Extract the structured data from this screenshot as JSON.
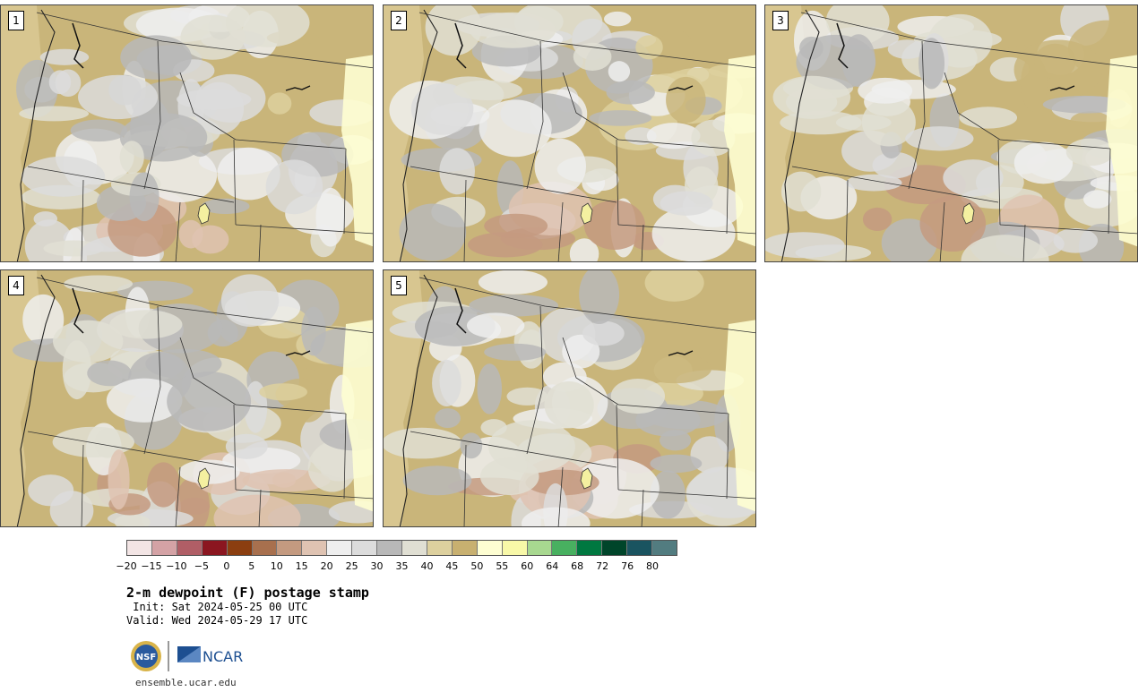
{
  "panels": [
    {
      "number": "1"
    },
    {
      "number": "2"
    },
    {
      "number": "3"
    },
    {
      "number": "4"
    },
    {
      "number": "5"
    }
  ],
  "colorbar": {
    "colors": [
      "#f3e5e5",
      "#d4a2a5",
      "#b05e66",
      "#8b1620",
      "#8b3e10",
      "#a8704e",
      "#c49a80",
      "#dfc3b2",
      "#efefef",
      "#dcdcdc",
      "#b8b8b8",
      "#e0dfd3",
      "#ddd09e",
      "#c8b070",
      "#fefed2",
      "#f8f8a8",
      "#a8d890",
      "#48b060",
      "#007840",
      "#00452a",
      "#1a5460",
      "#527c80"
    ],
    "labels": [
      "−20",
      "−15",
      "−10",
      "−5",
      "0",
      "5",
      "10",
      "15",
      "20",
      "25",
      "30",
      "35",
      "40",
      "45",
      "50",
      "55",
      "60",
      "64",
      "68",
      "72",
      "76",
      "80"
    ]
  },
  "title": "2-m dewpoint (F) postage stamp",
  "init": " Init: Sat 2024-05-25 00 UTC",
  "valid": "Valid: Wed 2024-05-29 17 UTC",
  "logos": {
    "left": "NSF",
    "right": "NCAR"
  },
  "website": "ensemble.ucar.edu"
}
